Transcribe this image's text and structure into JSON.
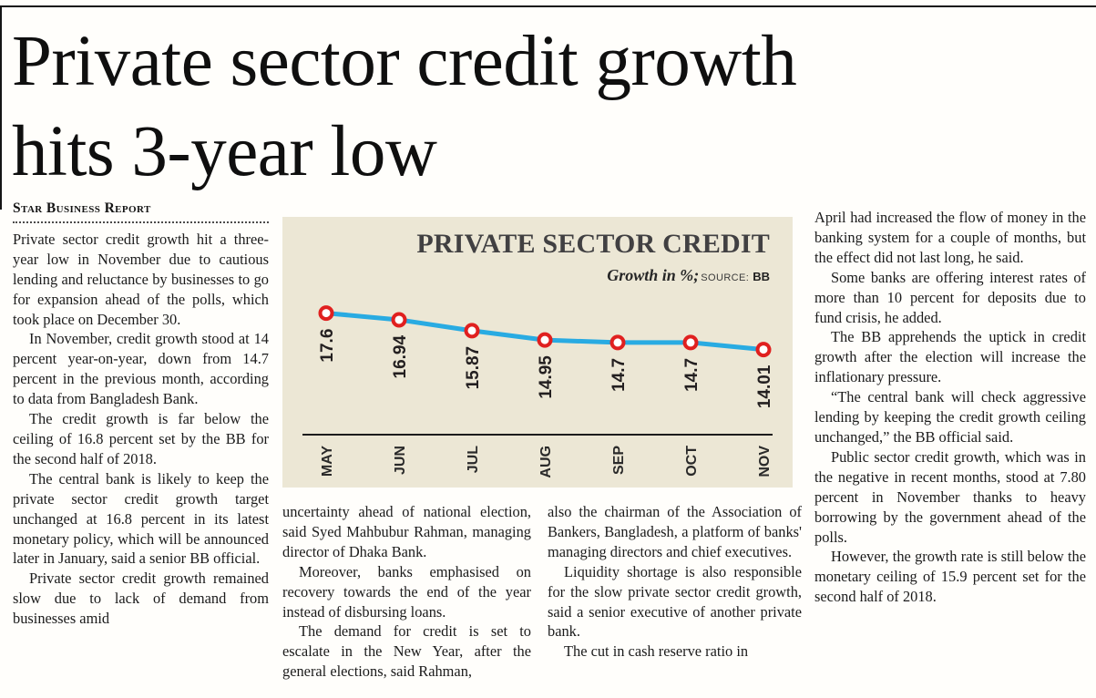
{
  "page": {
    "headline_line1": "Private sector credit growth",
    "headline_line2": "hits 3-year low",
    "byline": "Star Business Report"
  },
  "columns": {
    "left": [
      "Private sector credit growth hit a three-year low in November due to cautious lending and reluctance by businesses to go for expansion ahead of the polls, which took place on December 30.",
      "In November, credit growth stood at 14 percent year-on-year, down from 14.7 percent in the previous month, according to data from Bangladesh Bank.",
      "The credit growth is far below the ceiling of 16.8 percent set by the BB for the second half of 2018.",
      "The central bank is likely to keep the private sector credit growth target unchanged at 16.8 percent in its latest monetary policy, which will be announced later in January, said a senior BB official.",
      "Private sector credit growth remained slow due to lack of demand from businesses amid"
    ],
    "mid1": [
      "uncertainty ahead of national election, said Syed Mahbubur Rahman, managing director of Dhaka Bank.",
      "Moreover, banks emphasised on recovery towards the end of the year instead of disbursing loans.",
      "The demand for credit is set to escalate in the New Year, after the general elections, said Rahman,"
    ],
    "mid2": [
      "also the chairman of the Association of Bankers, Bangladesh, a platform of banks' managing directors and chief executives.",
      "Liquidity shortage is also responsible for the slow private sector credit growth, said a senior executive of another private bank.",
      "The cut in cash reserve ratio in"
    ],
    "right": [
      "April had increased the flow of money in the banking system for a couple of months, but the effect did not last long, he said.",
      "Some banks are offering interest rates of more than 10 percent for deposits due to fund crisis, he added.",
      "The BB apprehends the uptick in credit growth after the election will increase the inflationary pressure.",
      "“The central bank will check aggressive lending by keeping the credit growth ceiling unchanged,” the BB official said.",
      "Public sector credit growth, which was in the negative in recent months, stood at 7.80 percent in November thanks to heavy borrowing by the government ahead of the polls.",
      "However, the growth rate is still below the monetary ceiling of 15.9 percent set for the second half of 2018."
    ]
  },
  "chart_data": {
    "type": "line",
    "title": "PRIVATE SECTOR CREDIT",
    "subtitle": "Growth in %;",
    "source_label": "SOURCE:",
    "source_value": "BB",
    "categories": [
      "MAY",
      "JUN",
      "JUL",
      "AUG",
      "SEP",
      "OCT",
      "NOV"
    ],
    "values": [
      17.6,
      16.94,
      15.87,
      14.95,
      14.7,
      14.7,
      14.01
    ],
    "xlabel": "",
    "ylabel": "Growth in %",
    "ylim": [
      12,
      19
    ],
    "grid": false,
    "legend_position": "none",
    "line_color": "#29abe2",
    "marker_fill": "#ffffff",
    "marker_stroke": "#e0201f",
    "background": "#ece7d5"
  }
}
